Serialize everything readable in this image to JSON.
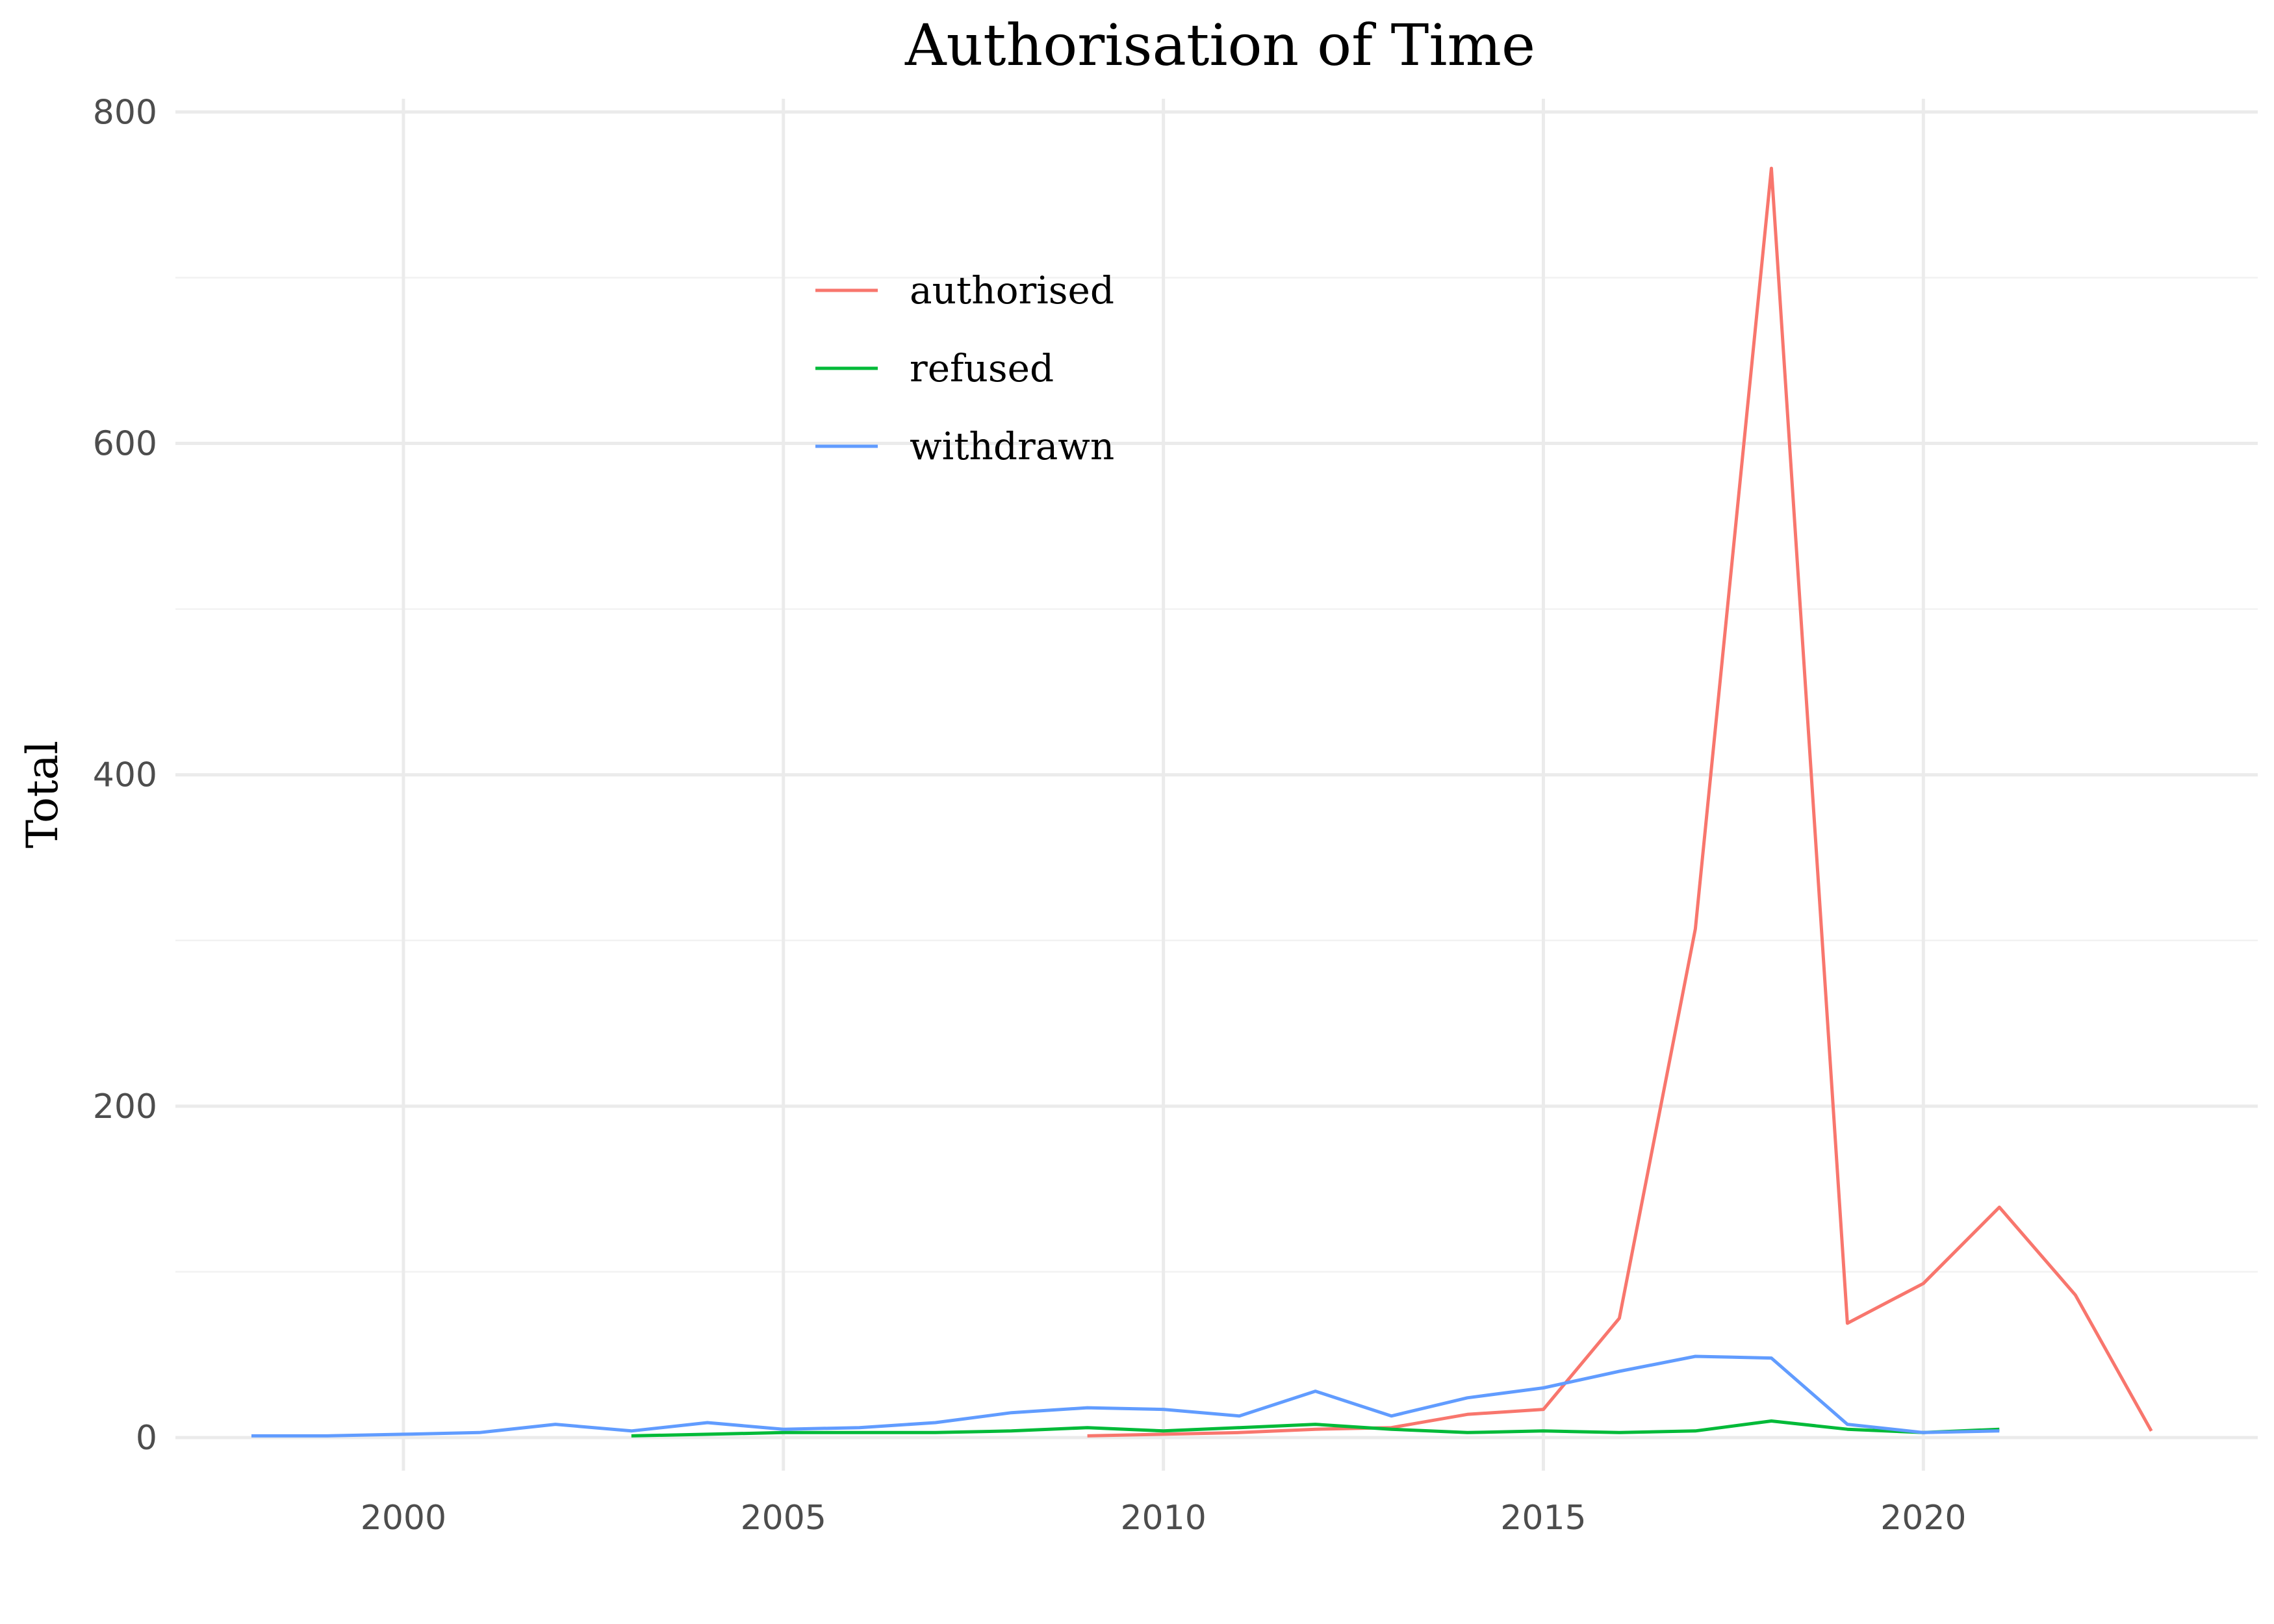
{
  "chart_data": {
    "type": "line",
    "title": "Authorisation of Time",
    "xlabel": "",
    "ylabel": "Total",
    "xlim": [
      1997,
      2024.4
    ],
    "ylim": [
      -20,
      808
    ],
    "x_ticks": [
      2000,
      2005,
      2010,
      2015,
      2020
    ],
    "y_ticks": [
      0,
      200,
      400,
      600,
      800
    ],
    "grid": true,
    "legend_position": "top-center",
    "series": [
      {
        "name": "authorised",
        "color": "#F8766D",
        "x": [
          2009,
          2010,
          2011,
          2012,
          2013,
          2014,
          2015,
          2016,
          2017,
          2018,
          2019,
          2020,
          2021,
          2022,
          2023
        ],
        "values": [
          1,
          2,
          3,
          5,
          6,
          14,
          17,
          72,
          307,
          766,
          69,
          93,
          139,
          86,
          4
        ]
      },
      {
        "name": "refused",
        "color": "#00BA38",
        "x": [
          2003,
          2004,
          2005,
          2006,
          2007,
          2008,
          2009,
          2010,
          2011,
          2012,
          2013,
          2014,
          2015,
          2016,
          2017,
          2018,
          2019,
          2020,
          2021
        ],
        "values": [
          1,
          2,
          3,
          3,
          3,
          4,
          6,
          4,
          6,
          8,
          5,
          3,
          4,
          3,
          4,
          10,
          5,
          3,
          5
        ]
      },
      {
        "name": "withdrawn",
        "color": "#619CFF",
        "x": [
          1998,
          1999,
          2000,
          2001,
          2002,
          2003,
          2004,
          2005,
          2006,
          2007,
          2008,
          2009,
          2010,
          2011,
          2012,
          2013,
          2014,
          2015,
          2016,
          2017,
          2018,
          2019,
          2020,
          2021
        ],
        "values": [
          1,
          1,
          2,
          3,
          8,
          4,
          9,
          5,
          6,
          9,
          15,
          18,
          17,
          13,
          28,
          13,
          24,
          30,
          40,
          49,
          48,
          8,
          3,
          4
        ]
      }
    ]
  }
}
